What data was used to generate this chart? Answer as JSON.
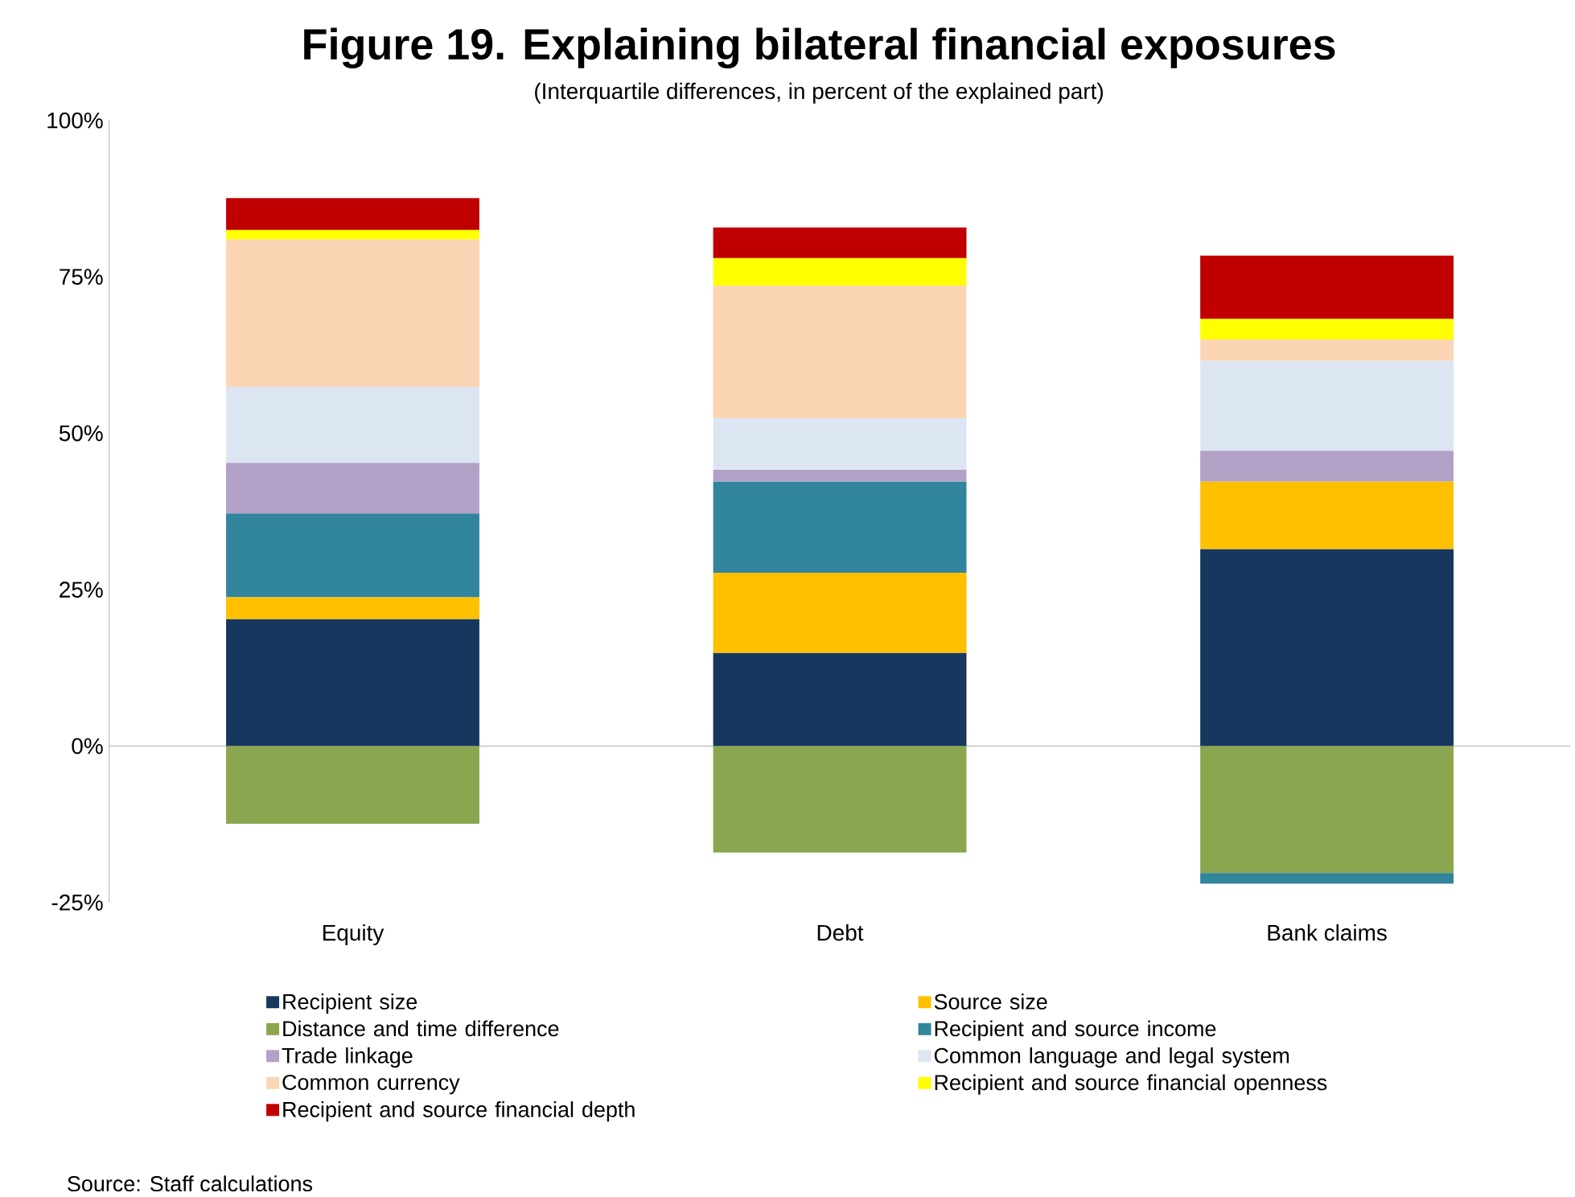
{
  "chart_data": {
    "type": "bar",
    "title": "Figure 19. Explaining bilateral financial exposures",
    "subtitle": "(Interquartile differences, in percent of the explained part)",
    "categories": [
      "Equity",
      "Debt",
      "Bank claims"
    ],
    "stacked": true,
    "series": [
      {
        "name": "Recipient size",
        "color": "#17375e",
        "values": [
          20.3,
          14.9,
          31.5
        ]
      },
      {
        "name": "Source size",
        "color": "#ffc000",
        "values": [
          3.5,
          12.8,
          10.8
        ]
      },
      {
        "name": "Distance and time difference",
        "color": "#8aa64e",
        "values": [
          -12.4,
          -17.0,
          -20.3
        ]
      },
      {
        "name": "Recipient and source income",
        "color": "#31859c",
        "values": [
          13.4,
          14.6,
          -1.7
        ]
      },
      {
        "name": "Trade linkage",
        "color": "#b2a1c7",
        "values": [
          8.1,
          1.9,
          4.9
        ]
      },
      {
        "name": "Common language and legal system",
        "color": "#dce6f2",
        "values": [
          12.1,
          8.2,
          14.4
        ]
      },
      {
        "name": "Common currency",
        "color": "#fcd5b5",
        "values": [
          23.6,
          21.2,
          3.4
        ]
      },
      {
        "name": "Recipient and source financial openness",
        "color": "#ffff00",
        "values": [
          1.5,
          4.4,
          3.3
        ]
      },
      {
        "name": "Recipient and source financial depth",
        "color": "#c00000",
        "values": [
          5.1,
          4.9,
          10.1
        ]
      }
    ],
    "ylim": [
      -25,
      100
    ],
    "yticks": [
      {
        "value": -25,
        "label": "-25%"
      },
      {
        "value": 0,
        "label": "0%"
      },
      {
        "value": 25,
        "label": "25%"
      },
      {
        "value": 50,
        "label": "50%"
      },
      {
        "value": 75,
        "label": "75%"
      },
      {
        "value": 100,
        "label": "100%"
      }
    ],
    "legend": "bottom",
    "annotations": [
      "Source: Staff calculations"
    ]
  }
}
